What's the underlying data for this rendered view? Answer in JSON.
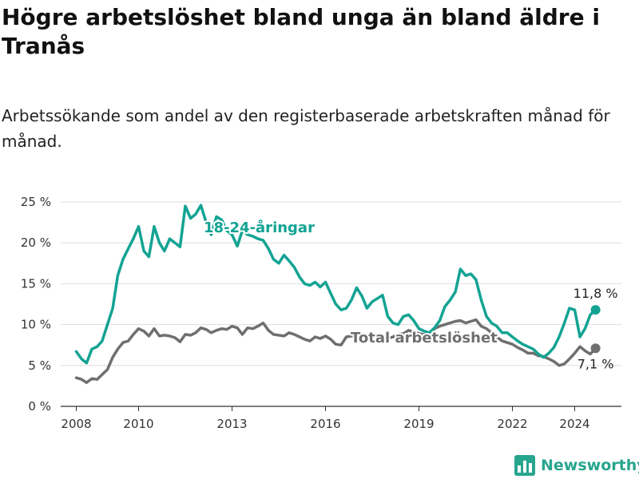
{
  "title": "Högre arbetslöshet bland unga än bland äldre i Tranås",
  "subtitle": "Arbetssökande som andel av den registerbaserade arbetskraften månad för månad.",
  "brand": {
    "name": "Newsworthy",
    "color": "#27a58e",
    "icon": "bar-chart-logo-icon"
  },
  "colors": {
    "youth": "#13a393",
    "total": "#6f6f6f",
    "grid": "#dddddd",
    "axis": "#333333"
  },
  "chart_data": {
    "type": "line",
    "title": "Högre arbetslöshet bland unga än bland äldre i Tranås",
    "subtitle": "Arbetssökande som andel av den registerbaserade arbetskraften månad för månad.",
    "xlabel": "",
    "ylabel": "",
    "xlim": [
      2007.5,
      2025.5
    ],
    "ylim": [
      0,
      25
    ],
    "y_ticks": [
      0,
      5,
      10,
      15,
      20,
      25
    ],
    "y_tick_labels": [
      "0 %",
      "5 %",
      "10 %",
      "15 %",
      "20 %",
      "25 %"
    ],
    "x_ticks": [
      2008,
      2010,
      2013,
      2016,
      2019,
      2022,
      2024
    ],
    "x_tick_labels": [
      "2008",
      "2010",
      "2013",
      "2016",
      "2019",
      "2022",
      "2024"
    ],
    "grid": true,
    "legend": "inline labels on lines",
    "series": [
      {
        "name": "18-24-åringar",
        "color": "#13a393",
        "end_label": "11,8 %",
        "x": [
          2008.0,
          2008.17,
          2008.33,
          2008.5,
          2008.67,
          2008.83,
          2009.0,
          2009.17,
          2009.33,
          2009.5,
          2009.67,
          2009.83,
          2010.0,
          2010.17,
          2010.33,
          2010.5,
          2010.67,
          2010.83,
          2011.0,
          2011.17,
          2011.33,
          2011.5,
          2011.67,
          2011.83,
          2012.0,
          2012.17,
          2012.33,
          2012.5,
          2012.67,
          2012.83,
          2013.0,
          2013.17,
          2013.33,
          2013.5,
          2013.67,
          2013.83,
          2014.0,
          2014.17,
          2014.33,
          2014.5,
          2014.67,
          2014.83,
          2015.0,
          2015.17,
          2015.33,
          2015.5,
          2015.67,
          2015.83,
          2016.0,
          2016.17,
          2016.33,
          2016.5,
          2016.67,
          2016.83,
          2017.0,
          2017.17,
          2017.33,
          2017.5,
          2017.67,
          2017.83,
          2018.0,
          2018.17,
          2018.33,
          2018.5,
          2018.67,
          2018.83,
          2019.0,
          2019.17,
          2019.33,
          2019.5,
          2019.67,
          2019.83,
          2020.0,
          2020.17,
          2020.33,
          2020.5,
          2020.67,
          2020.83,
          2021.0,
          2021.17,
          2021.33,
          2021.5,
          2021.67,
          2021.83,
          2022.0,
          2022.17,
          2022.33,
          2022.5,
          2022.67,
          2022.83,
          2023.0,
          2023.17,
          2023.33,
          2023.5,
          2023.67,
          2023.83,
          2024.0,
          2024.17,
          2024.33,
          2024.5,
          2024.67
        ],
        "values": [
          6.7,
          5.8,
          5.3,
          7.0,
          7.3,
          8.0,
          10.0,
          12.0,
          16.0,
          18.0,
          19.3,
          20.5,
          22.0,
          19.0,
          18.3,
          22.0,
          20.0,
          19.0,
          20.5,
          20.0,
          19.5,
          24.5,
          23.0,
          23.5,
          24.6,
          22.5,
          21.0,
          23.2,
          22.8,
          21.5,
          21.0,
          19.6,
          21.5,
          21.0,
          20.8,
          20.5,
          20.3,
          19.3,
          18.0,
          17.5,
          18.5,
          17.8,
          17.0,
          15.8,
          15.0,
          14.8,
          15.2,
          14.6,
          15.2,
          13.8,
          12.5,
          11.8,
          12.0,
          13.0,
          14.5,
          13.5,
          12.0,
          12.8,
          13.2,
          13.6,
          11.0,
          10.2,
          10.0,
          11.0,
          11.2,
          10.5,
          9.5,
          9.2,
          9.0,
          9.6,
          10.5,
          12.2,
          13.0,
          14.0,
          16.8,
          16.0,
          16.2,
          15.5,
          13.0,
          11.0,
          10.2,
          9.8,
          9.0,
          9.0,
          8.5,
          8.0,
          7.6,
          7.3,
          7.0,
          6.4,
          6.0,
          6.5,
          7.2,
          8.5,
          10.2,
          12.0,
          11.8,
          8.5,
          9.5,
          11.2,
          11.8
        ]
      },
      {
        "name": "Total arbetslöshet",
        "color": "#6f6f6f",
        "end_label": "7,1 %",
        "x": [
          2008.0,
          2008.17,
          2008.33,
          2008.5,
          2008.67,
          2008.83,
          2009.0,
          2009.17,
          2009.33,
          2009.5,
          2009.67,
          2009.83,
          2010.0,
          2010.17,
          2010.33,
          2010.5,
          2010.67,
          2010.83,
          2011.0,
          2011.17,
          2011.33,
          2011.5,
          2011.67,
          2011.83,
          2012.0,
          2012.17,
          2012.33,
          2012.5,
          2012.67,
          2012.83,
          2013.0,
          2013.17,
          2013.33,
          2013.5,
          2013.67,
          2013.83,
          2014.0,
          2014.17,
          2014.33,
          2014.5,
          2014.67,
          2014.83,
          2015.0,
          2015.17,
          2015.33,
          2015.5,
          2015.67,
          2015.83,
          2016.0,
          2016.17,
          2016.33,
          2016.5,
          2016.67,
          2016.83,
          2017.0,
          2017.17,
          2017.33,
          2017.5,
          2017.67,
          2017.83,
          2018.0,
          2018.17,
          2018.33,
          2018.5,
          2018.67,
          2018.83,
          2019.0,
          2019.17,
          2019.33,
          2019.5,
          2019.67,
          2019.83,
          2020.0,
          2020.17,
          2020.33,
          2020.5,
          2020.67,
          2020.83,
          2021.0,
          2021.17,
          2021.33,
          2021.5,
          2021.67,
          2021.83,
          2022.0,
          2022.17,
          2022.33,
          2022.5,
          2022.67,
          2022.83,
          2023.0,
          2023.17,
          2023.33,
          2023.5,
          2023.67,
          2023.83,
          2024.0,
          2024.17,
          2024.33,
          2024.5,
          2024.67
        ],
        "values": [
          3.5,
          3.3,
          2.9,
          3.4,
          3.3,
          3.9,
          4.5,
          6.0,
          7.0,
          7.8,
          8.0,
          8.8,
          9.5,
          9.2,
          8.6,
          9.5,
          8.6,
          8.7,
          8.6,
          8.4,
          7.9,
          8.8,
          8.7,
          9.0,
          9.6,
          9.4,
          9.0,
          9.3,
          9.5,
          9.4,
          9.8,
          9.6,
          8.8,
          9.6,
          9.5,
          9.8,
          10.2,
          9.3,
          8.8,
          8.7,
          8.6,
          9.0,
          8.8,
          8.5,
          8.2,
          8.0,
          8.5,
          8.3,
          8.6,
          8.2,
          7.6,
          7.5,
          8.5,
          8.6,
          8.8,
          8.5,
          8.3,
          8.5,
          8.8,
          8.6,
          8.3,
          8.5,
          8.8,
          8.9,
          9.3,
          9.1,
          8.9,
          8.8,
          9.0,
          9.5,
          9.8,
          10.0,
          10.2,
          10.4,
          10.5,
          10.2,
          10.4,
          10.6,
          9.8,
          9.5,
          9.0,
          8.5,
          8.0,
          7.8,
          7.6,
          7.2,
          6.9,
          6.5,
          6.5,
          6.2,
          6.1,
          5.8,
          5.5,
          5.0,
          5.2,
          5.8,
          6.5,
          7.3,
          6.8,
          6.4,
          7.1
        ]
      }
    ]
  }
}
